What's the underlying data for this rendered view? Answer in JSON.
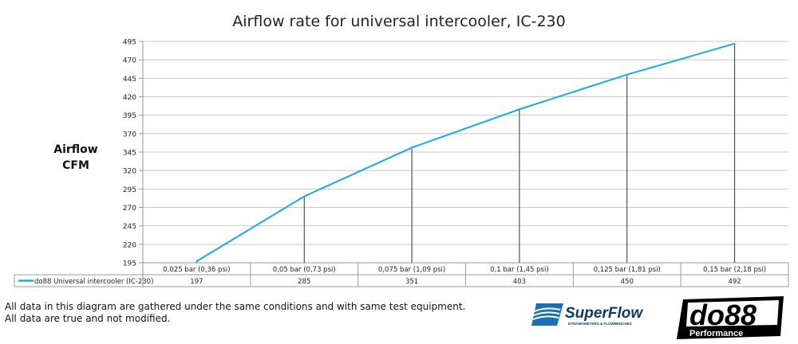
{
  "chart_data": {
    "type": "line",
    "title": "Airflow rate for universal intercooler, IC-230",
    "ylabel_lines": [
      "Airflow",
      "CFM"
    ],
    "xlabel": "",
    "categories": [
      "0,025 bar (0,36 psi)",
      "0,05 bar (0,73 psi)",
      "0,075 bar (1,09 psi)",
      "0,1 bar (1,45 psi)",
      "0,125 bar (1,81 psi)",
      "0,15 bar (2,18 psi)"
    ],
    "series": [
      {
        "name": "do88 Universal intercooler (IC-230)",
        "values": [
          197,
          285,
          351,
          403,
          450,
          492
        ],
        "color": "#1aa7ec"
      }
    ],
    "ylim": [
      195,
      495
    ],
    "yticks": [
      195,
      220,
      245,
      270,
      295,
      320,
      345,
      370,
      395,
      420,
      445,
      470,
      495
    ],
    "grid": true,
    "drop_lines": true,
    "legend": "data-table"
  },
  "footer": {
    "note_line1": "All data in this diagram are gathered under the same conditions and with same test equipment.",
    "note_line2": "All data are true and not modified."
  },
  "logos": {
    "superflow": "SuperFlow",
    "superflow_sub": "DYNAMOMETERS & FLOWBENCHES",
    "do88": "do88",
    "do88_sub": "Performance"
  }
}
